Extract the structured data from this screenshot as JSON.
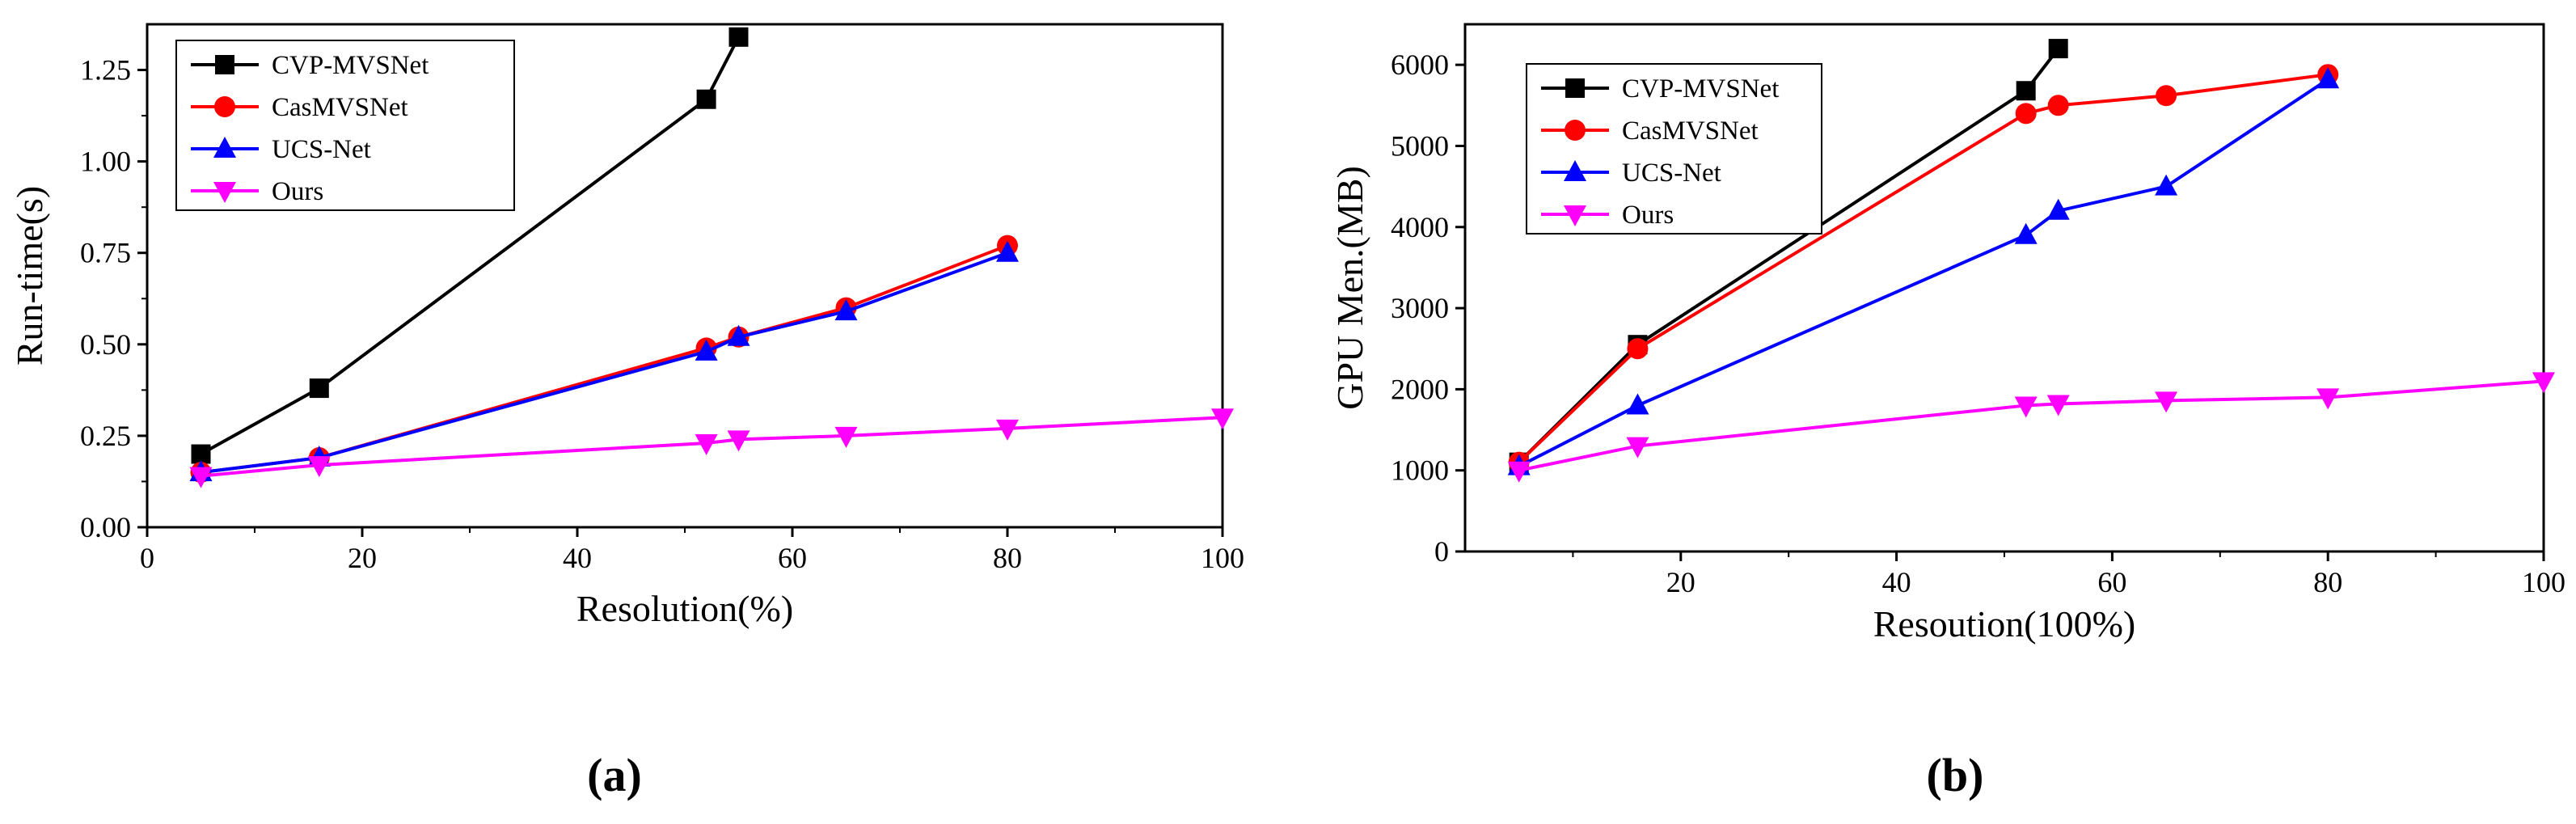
{
  "chart_data": [
    {
      "type": "line",
      "panel_label": "a",
      "title": "",
      "xlabel": "Resolution(%)",
      "ylabel": "Run-time(s)",
      "xlim": [
        0,
        100
      ],
      "ylim": [
        0,
        1.375
      ],
      "xticks": [
        0,
        20,
        40,
        60,
        80,
        100
      ],
      "yticks": [
        "0.00",
        "0.25",
        "0.50",
        "0.75",
        "1.00",
        "1.25"
      ],
      "legend_position": "top-left",
      "series": [
        {
          "name": "CVP-MVSNet",
          "color": "#000000",
          "marker": "square",
          "x": [
            5,
            16,
            52,
            55
          ],
          "y": [
            0.2,
            0.38,
            1.17,
            1.34
          ]
        },
        {
          "name": "CasMVSNet",
          "color": "#ff0000",
          "marker": "circle",
          "x": [
            5,
            16,
            52,
            55,
            65,
            80
          ],
          "y": [
            0.15,
            0.19,
            0.49,
            0.52,
            0.6,
            0.77
          ]
        },
        {
          "name": "UCS-Net",
          "color": "#0000ff",
          "marker": "triangle-up",
          "x": [
            5,
            16,
            52,
            55,
            65,
            80
          ],
          "y": [
            0.15,
            0.19,
            0.48,
            0.52,
            0.59,
            0.75
          ]
        },
        {
          "name": "Ours",
          "color": "#ff00ff",
          "marker": "triangle-down",
          "x": [
            5,
            16,
            52,
            55,
            65,
            80,
            100
          ],
          "y": [
            0.14,
            0.17,
            0.23,
            0.24,
            0.25,
            0.27,
            0.3
          ]
        }
      ]
    },
    {
      "type": "line",
      "panel_label": "b",
      "title": "",
      "xlabel": "Resoution(100%)",
      "ylabel": "GPU Men.(MB)",
      "xlim": [
        0,
        100
      ],
      "ylim": [
        0,
        6500
      ],
      "xticks": [
        20,
        40,
        60,
        80,
        100
      ],
      "yticks": [
        "0",
        "1000",
        "2000",
        "3000",
        "4000",
        "5000",
        "6000"
      ],
      "legend_position": "top-left",
      "series": [
        {
          "name": "CVP-MVSNet",
          "color": "#000000",
          "marker": "square",
          "x": [
            5,
            16,
            52,
            55
          ],
          "y": [
            1100,
            2550,
            5680,
            6200
          ]
        },
        {
          "name": "CasMVSNet",
          "color": "#ff0000",
          "marker": "circle",
          "x": [
            5,
            16,
            52,
            55,
            65,
            80
          ],
          "y": [
            1100,
            2500,
            5400,
            5500,
            5620,
            5880
          ]
        },
        {
          "name": "UCS-Net",
          "color": "#0000ff",
          "marker": "triangle-up",
          "x": [
            5,
            16,
            52,
            55,
            65,
            80
          ],
          "y": [
            1050,
            1800,
            3900,
            4200,
            4500,
            5820
          ]
        },
        {
          "name": "Ours",
          "color": "#ff00ff",
          "marker": "triangle-down",
          "x": [
            5,
            16,
            52,
            55,
            65,
            80,
            100
          ],
          "y": [
            1000,
            1300,
            1800,
            1820,
            1860,
            1900,
            2100
          ]
        }
      ]
    }
  ]
}
